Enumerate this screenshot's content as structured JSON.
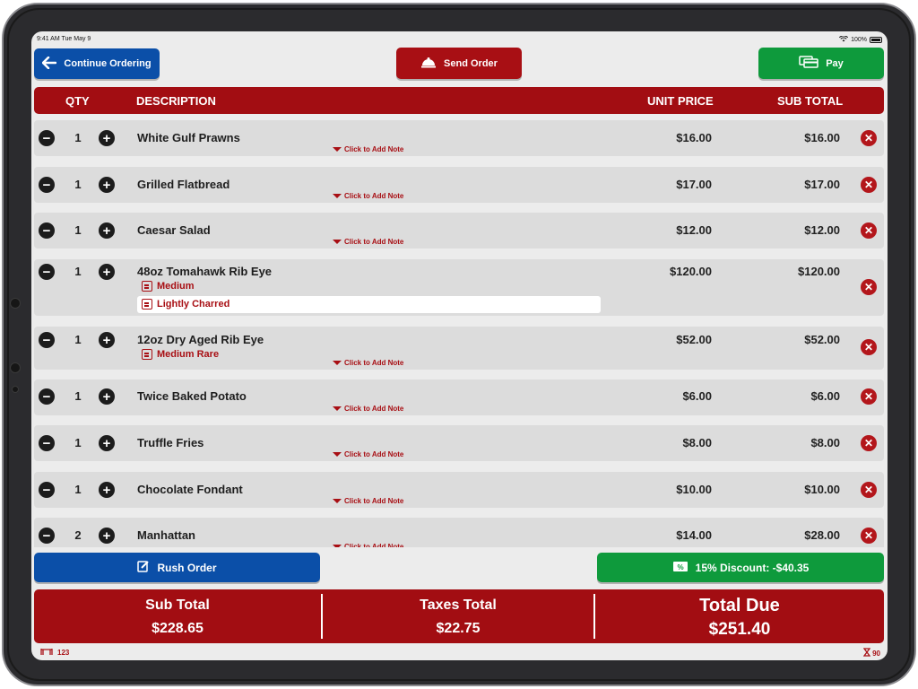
{
  "status_bar": {
    "time": "9:41 AM  Tue May 9",
    "battery": "100%"
  },
  "toolbar": {
    "continue_label": "Continue Ordering",
    "send_label": "Send Order",
    "pay_label": "Pay"
  },
  "header": {
    "qty": "QTY",
    "description": "DESCRIPTION",
    "unit_price": "UNIT PRICE",
    "sub_total": "SUB TOTAL"
  },
  "note_label": "Click to Add Note",
  "items": [
    {
      "qty": "1",
      "description": "White Gulf Prawns",
      "unit_price": "$16.00",
      "sub_total": "$16.00"
    },
    {
      "qty": "1",
      "description": "Grilled Flatbread",
      "unit_price": "$17.00",
      "sub_total": "$17.00"
    },
    {
      "qty": "1",
      "description": "Caesar Salad",
      "unit_price": "$12.00",
      "sub_total": "$12.00"
    },
    {
      "qty": "1",
      "description": "48oz Tomahawk Rib Eye",
      "unit_price": "$120.00",
      "sub_total": "$120.00",
      "modifier": "Medium",
      "note": "Lightly Charred"
    },
    {
      "qty": "1",
      "description": "12oz Dry Aged Rib Eye",
      "unit_price": "$52.00",
      "sub_total": "$52.00",
      "modifier": "Medium Rare"
    },
    {
      "qty": "1",
      "description": "Twice Baked Potato",
      "unit_price": "$6.00",
      "sub_total": "$6.00"
    },
    {
      "qty": "1",
      "description": "Truffle Fries",
      "unit_price": "$8.00",
      "sub_total": "$8.00"
    },
    {
      "qty": "1",
      "description": "Chocolate Fondant",
      "unit_price": "$10.00",
      "sub_total": "$10.00"
    },
    {
      "qty": "2",
      "description": "Manhattan",
      "unit_price": "$14.00",
      "sub_total": "$28.00"
    }
  ],
  "actions": {
    "rush_label": "Rush Order",
    "discount_label": "15% Discount: -$40.35"
  },
  "totals": {
    "sub_total_label": "Sub Total",
    "sub_total_value": "$228.65",
    "taxes_label": "Taxes Total",
    "taxes_value": "$22.75",
    "due_label": "Total Due",
    "due_value": "$251.40"
  },
  "footer": {
    "table": "123",
    "timer": "90"
  },
  "colors": {
    "red": "#a20d12",
    "blue": "#0b4fa8",
    "green": "#0e9a3c"
  },
  "icons": {
    "back": "arrow-left-icon",
    "send": "bell-icon",
    "pay": "card-icon",
    "rush": "edit-icon",
    "discount": "ticket-icon",
    "table": "table-icon",
    "timer": "hourglass-icon"
  }
}
